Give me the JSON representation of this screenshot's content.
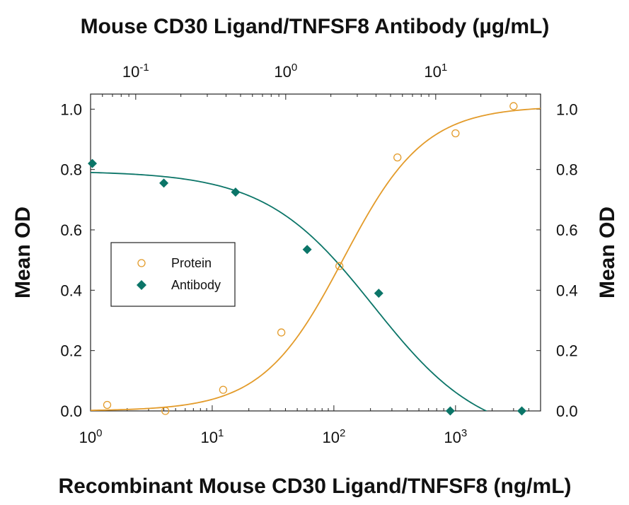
{
  "chart_data": {
    "type": "scatter",
    "top_axis_label": "Mouse CD30 Ligand/TNFSF8 Antibody (µg/mL)",
    "xlabel": "Recombinant Mouse CD30 Ligand/TNFSF8 (ng/mL)",
    "ylabel_left": "Mean OD",
    "ylabel_right": "Mean OD",
    "x_scale": "log",
    "xlim": [
      1,
      5000
    ],
    "x_ticks": [
      {
        "value": 1,
        "base": "10",
        "exp": "0"
      },
      {
        "value": 10,
        "base": "10",
        "exp": "1"
      },
      {
        "value": 100,
        "base": "10",
        "exp": "2"
      },
      {
        "value": 1000,
        "base": "10",
        "exp": "3"
      }
    ],
    "x2_scale": "log",
    "x2lim": [
      0.05,
      50
    ],
    "x2_ticks": [
      {
        "value": 0.1,
        "base": "10",
        "exp": "-1"
      },
      {
        "value": 1,
        "base": "10",
        "exp": "0"
      },
      {
        "value": 10,
        "base": "10",
        "exp": "1"
      }
    ],
    "ylim": [
      0,
      1.05
    ],
    "y_ticks": [
      "0.0",
      "0.2",
      "0.4",
      "0.6",
      "0.8",
      "1.0"
    ],
    "y_tick_values": [
      0,
      0.2,
      0.4,
      0.6,
      0.8,
      1.0
    ],
    "grid": false,
    "legend_position": "left",
    "series": [
      {
        "name": "Protein",
        "axis": "bottom",
        "marker": "open-circle",
        "color": "#e39b2a",
        "x": [
          1.37,
          4.12,
          12.3,
          37.0,
          111,
          333,
          1000,
          3000
        ],
        "y": [
          0.02,
          0.0,
          0.07,
          0.26,
          0.48,
          0.84,
          0.92,
          1.01
        ],
        "fit": {
          "bottom": 0.0,
          "top": 1.01,
          "ec50": 120,
          "hill": 1.3
        }
      },
      {
        "name": "Antibody",
        "axis": "top",
        "marker": "filled-diamond",
        "color": "#0b7568",
        "x": [
          0.0514,
          0.154,
          0.463,
          1.39,
          4.17,
          12.5,
          37.5
        ],
        "y": [
          0.82,
          0.755,
          0.725,
          0.535,
          0.39,
          0.0,
          0.0
        ],
        "fit": {
          "bottom": -0.1,
          "top": 0.795,
          "ec50": 3.85,
          "hill": 1.2
        }
      }
    ]
  }
}
